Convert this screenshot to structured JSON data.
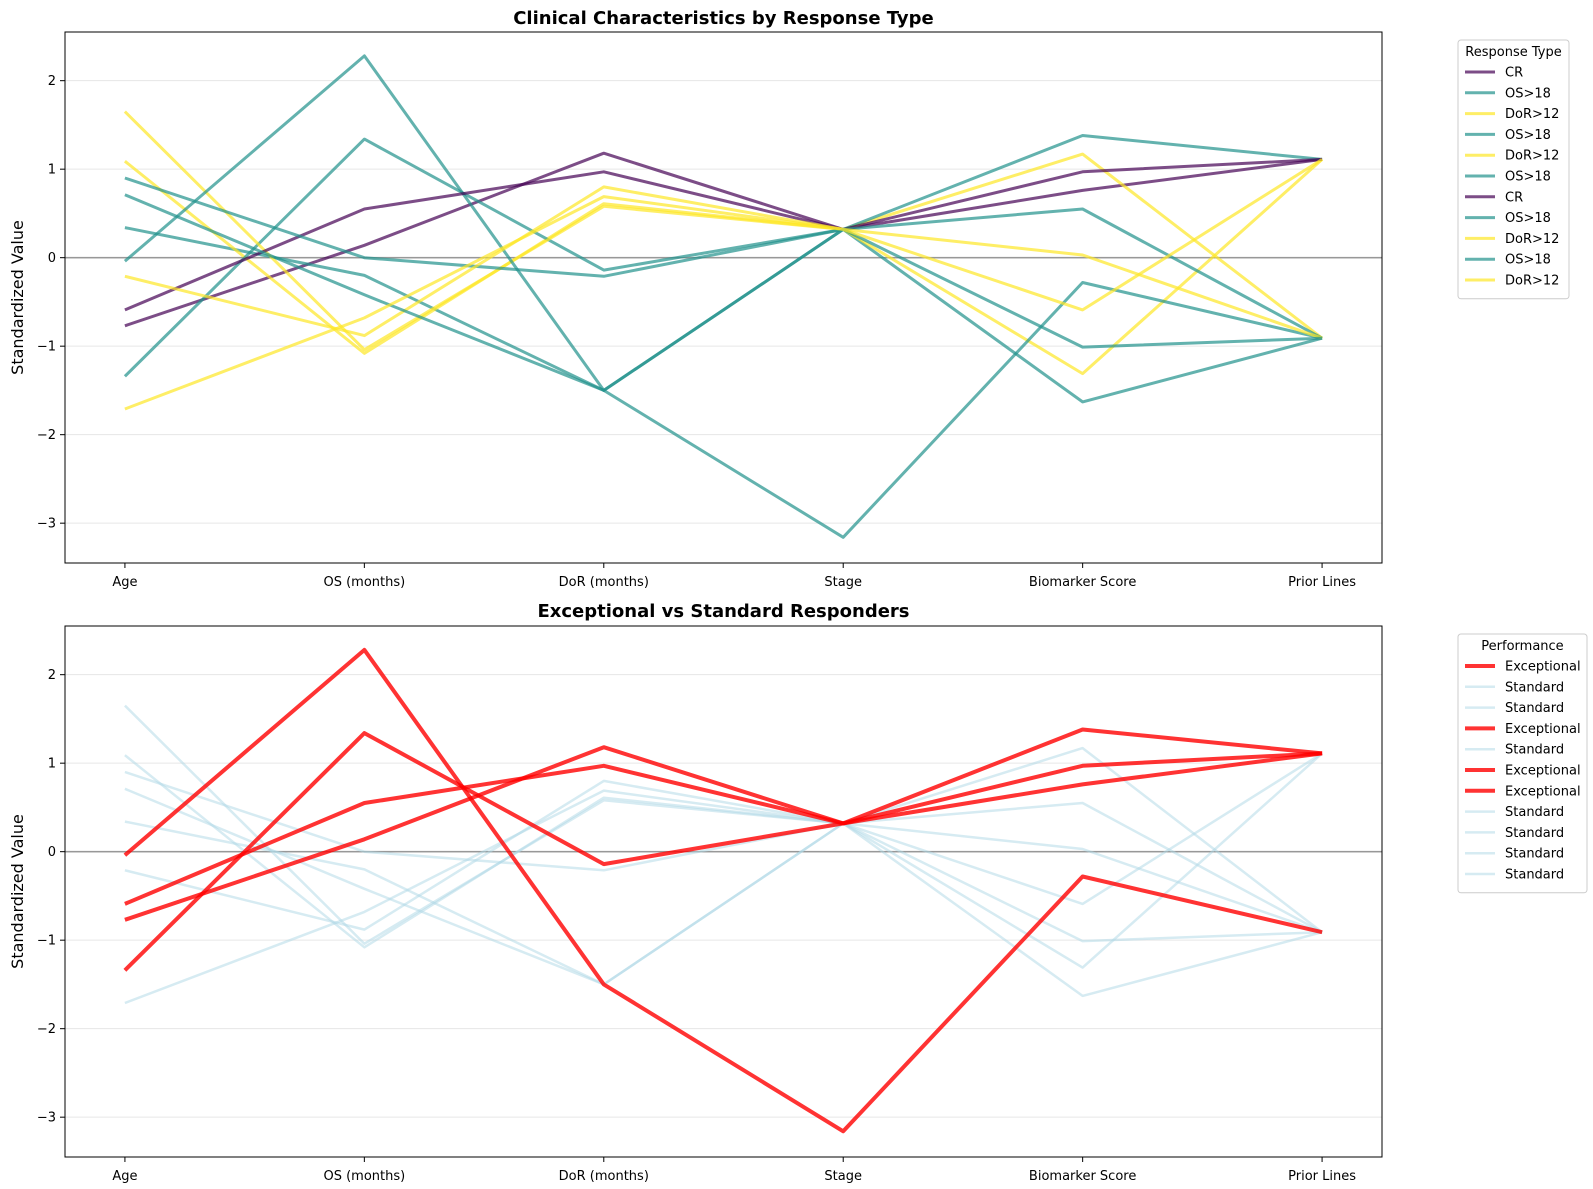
{
  "chart_data": [
    {
      "type": "line",
      "title": "Clinical Characteristics by Response Type",
      "xlabel": "",
      "ylabel": "Standardized Value",
      "categories": [
        "Age",
        "OS (months)",
        "DoR (months)",
        "Stage",
        "Biomarker Score",
        "Prior Lines"
      ],
      "ylim": [
        -3.45,
        2.55
      ],
      "yticks": [
        2,
        1,
        0,
        -1,
        -2,
        -3
      ],
      "ytick_labels": [
        "2",
        "1",
        "0",
        "−1",
        "−2",
        "−3"
      ],
      "grid": true,
      "zero_line": true,
      "legend": {
        "title": "Response Type",
        "placement": "outside-right"
      },
      "series": [
        {
          "name": "CR",
          "color": "#440154",
          "values": [
            -0.77,
            0.14,
            1.18,
            0.32,
            0.76,
            1.11
          ]
        },
        {
          "name": "OS>18",
          "color": "#21918c",
          "values": [
            0.34,
            -0.2,
            -1.5,
            0.32,
            -1.63,
            -0.91
          ]
        },
        {
          "name": "DoR>12",
          "color": "#fde725",
          "values": [
            1.09,
            -1.08,
            0.61,
            0.32,
            1.17,
            -0.91
          ]
        },
        {
          "name": "OS>18",
          "color": "#21918c",
          "values": [
            -1.34,
            1.34,
            -0.14,
            0.32,
            1.38,
            1.11
          ]
        },
        {
          "name": "DoR>12",
          "color": "#fde725",
          "values": [
            1.65,
            -1.04,
            0.58,
            0.32,
            -1.31,
            1.11
          ]
        },
        {
          "name": "OS>18",
          "color": "#21918c",
          "values": [
            -0.04,
            2.28,
            -1.5,
            -3.16,
            -0.28,
            -0.91
          ]
        },
        {
          "name": "CR",
          "color": "#440154",
          "values": [
            -0.59,
            0.55,
            0.97,
            0.32,
            0.97,
            1.11
          ]
        },
        {
          "name": "OS>18",
          "color": "#21918c",
          "values": [
            0.9,
            0.0,
            -0.21,
            0.32,
            0.55,
            -0.91
          ]
        },
        {
          "name": "DoR>12",
          "color": "#fde725",
          "values": [
            -0.21,
            -0.88,
            0.8,
            0.32,
            0.03,
            -0.91
          ]
        },
        {
          "name": "OS>18",
          "color": "#21918c",
          "values": [
            0.71,
            -0.42,
            -1.5,
            0.32,
            -1.01,
            -0.91
          ]
        },
        {
          "name": "DoR>12",
          "color": "#fde725",
          "values": [
            -1.71,
            -0.68,
            0.69,
            0.32,
            -0.59,
            1.11
          ]
        }
      ]
    },
    {
      "type": "line",
      "title": "Exceptional vs Standard Responders",
      "xlabel": "",
      "ylabel": "Standardized Value",
      "categories": [
        "Age",
        "OS (months)",
        "DoR (months)",
        "Stage",
        "Biomarker Score",
        "Prior Lines"
      ],
      "ylim": [
        -3.45,
        2.55
      ],
      "yticks": [
        2,
        1,
        0,
        -1,
        -2,
        -3
      ],
      "ytick_labels": [
        "2",
        "1",
        "0",
        "−1",
        "−2",
        "−3"
      ],
      "grid": true,
      "zero_line": true,
      "legend": {
        "title": "Performance",
        "placement": "outside-right"
      },
      "series": [
        {
          "name": "Exceptional",
          "color": "#ff0000",
          "values": [
            -0.77,
            0.14,
            1.18,
            0.32,
            0.76,
            1.11
          ]
        },
        {
          "name": "Standard",
          "color": "#add8e6",
          "values": [
            0.34,
            -0.2,
            -1.5,
            0.32,
            -1.63,
            -0.91
          ]
        },
        {
          "name": "Standard",
          "color": "#add8e6",
          "values": [
            1.09,
            -1.08,
            0.61,
            0.32,
            1.17,
            -0.91
          ]
        },
        {
          "name": "Exceptional",
          "color": "#ff0000",
          "values": [
            -1.34,
            1.34,
            -0.14,
            0.32,
            1.38,
            1.11
          ]
        },
        {
          "name": "Standard",
          "color": "#add8e6",
          "values": [
            1.65,
            -1.04,
            0.58,
            0.32,
            -1.31,
            1.11
          ]
        },
        {
          "name": "Exceptional",
          "color": "#ff0000",
          "values": [
            -0.04,
            2.28,
            -1.5,
            -3.16,
            -0.28,
            -0.91
          ]
        },
        {
          "name": "Exceptional",
          "color": "#ff0000",
          "values": [
            -0.59,
            0.55,
            0.97,
            0.32,
            0.97,
            1.11
          ]
        },
        {
          "name": "Standard",
          "color": "#add8e6",
          "values": [
            0.9,
            0.0,
            -0.21,
            0.32,
            0.55,
            -0.91
          ]
        },
        {
          "name": "Standard",
          "color": "#add8e6",
          "values": [
            -0.21,
            -0.88,
            0.8,
            0.32,
            0.03,
            -0.91
          ]
        },
        {
          "name": "Standard",
          "color": "#add8e6",
          "values": [
            0.71,
            -0.42,
            -1.5,
            0.32,
            -1.01,
            -0.91
          ]
        },
        {
          "name": "Standard",
          "color": "#add8e6",
          "values": [
            -1.71,
            -0.68,
            0.69,
            0.32,
            -0.59,
            1.11
          ]
        }
      ]
    }
  ]
}
